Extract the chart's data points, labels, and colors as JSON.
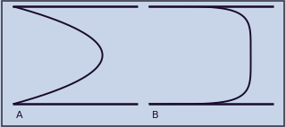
{
  "outer_bg": "#c8d5e8",
  "panel_bg": "#ffffff",
  "curve_color": "#1a0a2e",
  "line_color": "#1a0a2e",
  "label_color": "#1a0a2e",
  "label_A": "A",
  "label_B": "B",
  "label_fontsize": 8,
  "curve_linewidth": 1.4,
  "line_linewidth": 1.8,
  "figsize": [
    3.2,
    1.42
  ],
  "dpi": 100,
  "parabola_n": 2,
  "flat_n": 5,
  "outer_border_color": "#3a3a4a",
  "outer_border_lw": 1.0
}
